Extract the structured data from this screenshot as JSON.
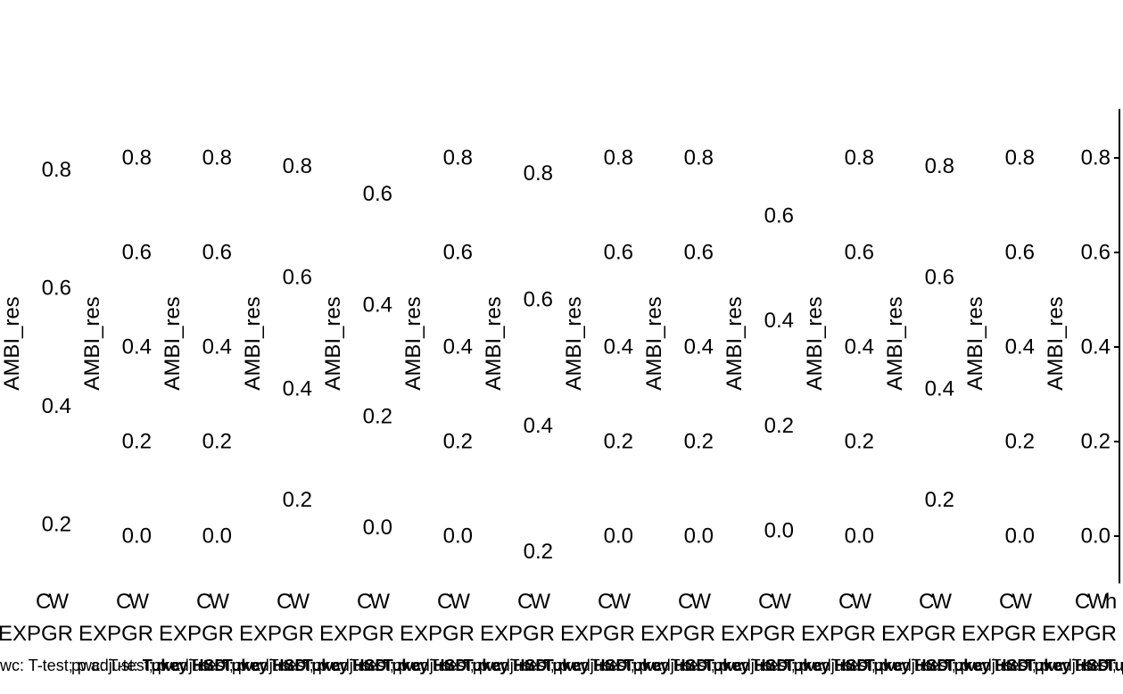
{
  "chart_data": {
    "type": "box",
    "ylabel": "AMBI_res",
    "x_tick": "CW",
    "x_tick_last": "CWh",
    "group_label": "EXPGR",
    "caption_prefix": "pwc: T-test; p.adjust: ",
    "caption_method": "Tukey",
    "caption_method_full": "Tukey HSD",
    "panels": [
      {
        "ylim": [
          0.1,
          0.9
        ],
        "ticks": [
          0.2,
          0.4,
          0.6,
          0.8
        ]
      },
      {
        "ylim": [
          -0.1,
          0.9
        ],
        "ticks": [
          0.0,
          0.2,
          0.4,
          0.6,
          0.8
        ]
      },
      {
        "ylim": [
          -0.1,
          0.9
        ],
        "ticks": [
          0.0,
          0.2,
          0.4,
          0.6,
          0.8
        ]
      },
      {
        "ylim": [
          0.05,
          0.9
        ],
        "ticks": [
          0.2,
          0.4,
          0.6,
          0.8
        ]
      },
      {
        "ylim": [
          -0.1,
          0.75
        ],
        "ticks": [
          0.0,
          0.2,
          0.4,
          0.6
        ]
      },
      {
        "ylim": [
          -0.1,
          0.9
        ],
        "ticks": [
          0.0,
          0.2,
          0.4,
          0.6,
          0.8
        ]
      },
      {
        "ylim": [
          0.15,
          0.9
        ],
        "ticks": [
          0.2,
          0.4,
          0.6,
          0.8
        ]
      },
      {
        "ylim": [
          -0.1,
          0.9
        ],
        "ticks": [
          0.0,
          0.2,
          0.4,
          0.6,
          0.8
        ]
      },
      {
        "ylim": [
          -0.1,
          0.9
        ],
        "ticks": [
          0.0,
          0.2,
          0.4,
          0.6,
          0.8
        ]
      },
      {
        "ylim": [
          -0.1,
          0.8
        ],
        "ticks": [
          0.0,
          0.2,
          0.4,
          0.6
        ]
      },
      {
        "ylim": [
          -0.1,
          0.9
        ],
        "ticks": [
          0.0,
          0.2,
          0.4,
          0.6,
          0.8
        ]
      },
      {
        "ylim": [
          0.05,
          0.9
        ],
        "ticks": [
          0.2,
          0.4,
          0.6,
          0.8
        ]
      },
      {
        "ylim": [
          -0.1,
          0.9
        ],
        "ticks": [
          0.0,
          0.2,
          0.4,
          0.6,
          0.8
        ]
      },
      {
        "ylim": [
          -0.1,
          0.9
        ],
        "ticks": [
          0.0,
          0.2,
          0.4,
          0.6,
          0.8
        ]
      }
    ]
  }
}
